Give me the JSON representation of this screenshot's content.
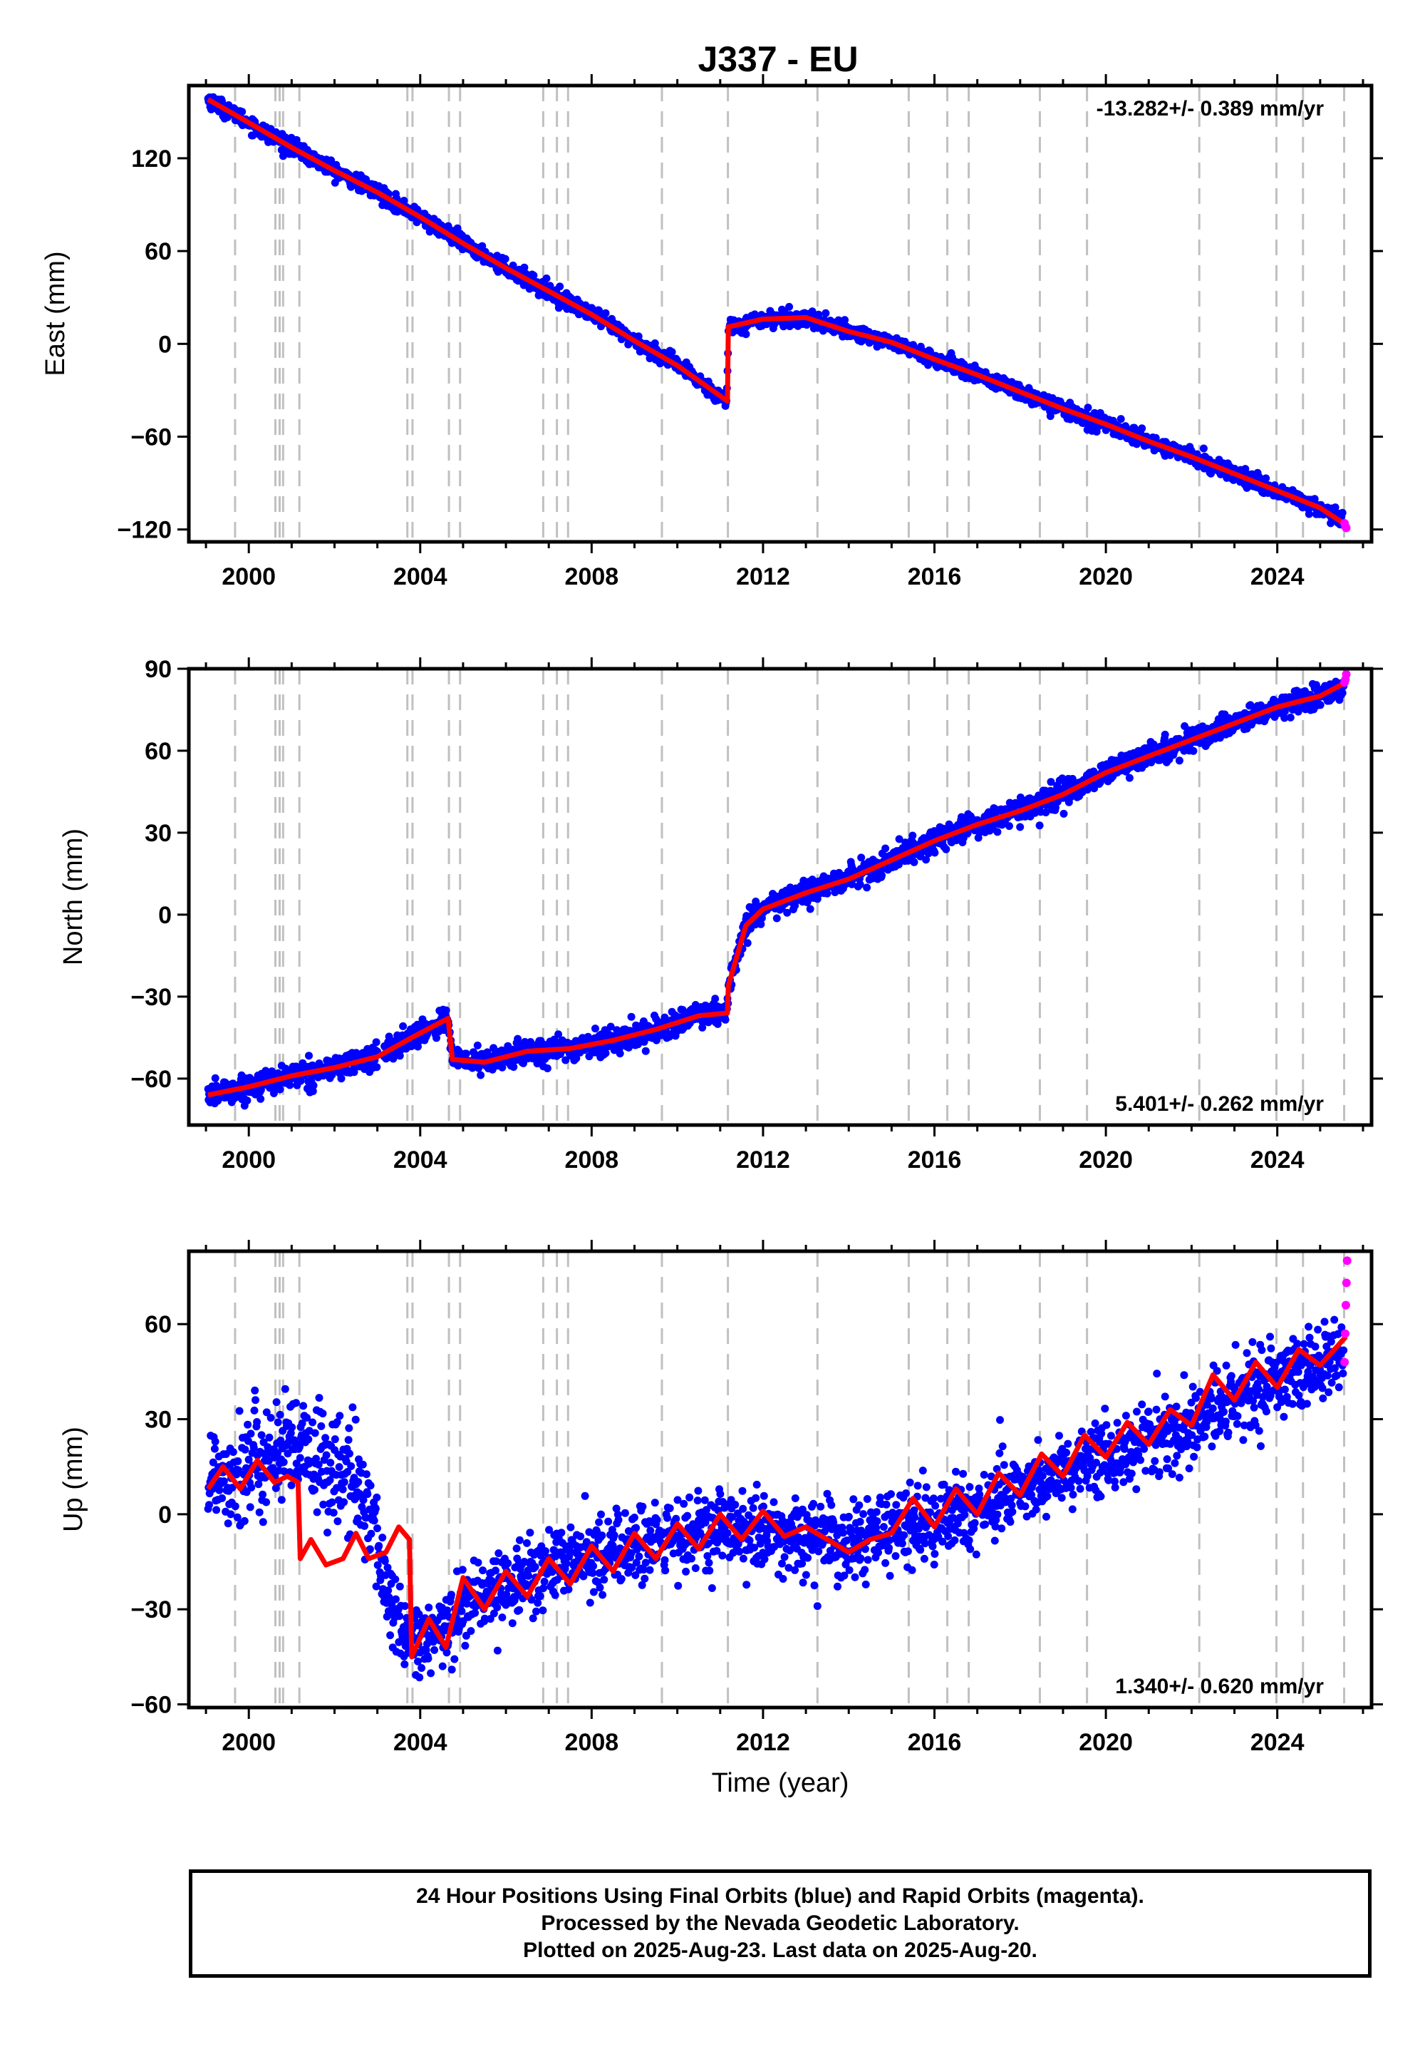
{
  "title": "J337 - EU",
  "x_axis_label": "Time (year)",
  "x_ticks": [
    2000,
    2004,
    2008,
    2012,
    2016,
    2020,
    2024
  ],
  "colors": {
    "final": "#0000ff",
    "rapid": "#ff00ff",
    "model": "#ff0000",
    "events": "#c0c0c0"
  },
  "event_years": [
    1999.68,
    2000.62,
    2000.72,
    2000.8,
    2001.18,
    2003.7,
    2003.82,
    2004.67,
    2004.93,
    2006.87,
    2007.19,
    2007.45,
    2009.64,
    2011.18,
    2013.27,
    2015.4,
    2016.3,
    2016.8,
    2018.46,
    2019.56,
    2022.18,
    2023.98,
    2024.6,
    2025.56
  ],
  "footer": {
    "line1": "24 Hour Positions Using Final Orbits (blue) and Rapid Orbits (magenta).",
    "line2": "Processed by the Nevada Geodetic Laboratory.",
    "line3": "Plotted on 2025-Aug-23. Last data on 2025-Aug-20."
  },
  "chart_data": [
    {
      "type": "scatter",
      "panel": "east",
      "ylabel": "East (mm)",
      "rate_text": "-13.282+/- 0.389 mm/yr",
      "xlim": [
        1998.6,
        2026.2
      ],
      "ylim": [
        -128,
        167
      ],
      "y_ticks": [
        -120,
        -60,
        0,
        60,
        120
      ],
      "noise_mm": 2.5,
      "series": [
        {
          "name": "Final Orbits (blue)",
          "style": "dots",
          "x": [
            1999.05,
            2000.0,
            2001.0,
            2002.0,
            2003.0,
            2004.0,
            2005.0,
            2006.0,
            2007.0,
            2008.0,
            2009.0,
            2010.0,
            2011.15,
            2011.2,
            2012.0,
            2013.0,
            2014.0,
            2015.0,
            2016.0,
            2017.0,
            2018.0,
            2019.0,
            2020.0,
            2021.0,
            2022.0,
            2023.0,
            2024.0,
            2025.0,
            2025.55
          ],
          "y": [
            158,
            143,
            127,
            112,
            98,
            82,
            65,
            49,
            34,
            19,
            2,
            -14,
            -37,
            11,
            16,
            17,
            8,
            1,
            -10,
            -20,
            -31,
            -42,
            -52,
            -63,
            -73,
            -84,
            -95,
            -106,
            -115
          ]
        },
        {
          "name": "Rapid Orbits (magenta)",
          "style": "dots",
          "x": [
            2025.57,
            2025.59,
            2025.61
          ],
          "y": [
            -116,
            -118,
            -119
          ]
        },
        {
          "name": "Model (red)",
          "style": "line",
          "x": [
            1999.05,
            2000.0,
            2001.0,
            2002.0,
            2003.0,
            2004.0,
            2005.0,
            2006.0,
            2007.0,
            2008.0,
            2009.0,
            2010.0,
            2011.17,
            2011.19,
            2012.0,
            2013.0,
            2014.0,
            2015.0,
            2016.0,
            2017.0,
            2018.0,
            2019.0,
            2020.0,
            2021.0,
            2022.0,
            2023.0,
            2024.0,
            2025.0,
            2025.6
          ],
          "y": [
            158,
            143,
            127,
            112,
            98,
            82,
            65,
            49,
            34,
            19,
            2,
            -14,
            -37,
            11,
            16,
            17,
            8,
            1,
            -10,
            -20,
            -31,
            -42,
            -52,
            -63,
            -73,
            -84,
            -95,
            -106,
            -117
          ]
        }
      ]
    },
    {
      "type": "scatter",
      "panel": "north",
      "ylabel": "North (mm)",
      "rate_text": "5.401+/- 0.262 mm/yr",
      "xlim": [
        1998.6,
        2026.2
      ],
      "ylim": [
        -77,
        90
      ],
      "y_ticks": [
        -60,
        -30,
        0,
        30,
        60,
        90
      ],
      "noise_mm": 2.2,
      "series": [
        {
          "name": "Final Orbits (blue)",
          "style": "dots",
          "x": [
            1999.05,
            2000.0,
            2001.0,
            2002.0,
            2003.0,
            2003.8,
            2004.65,
            2004.75,
            2005.5,
            2006.5,
            2007.5,
            2008.5,
            2009.5,
            2010.5,
            2011.15,
            2011.2,
            2011.6,
            2012.0,
            2013.0,
            2014.0,
            2015.0,
            2016.0,
            2017.0,
            2018.0,
            2019.0,
            2020.0,
            2021.0,
            2022.0,
            2023.0,
            2024.0,
            2025.0,
            2025.55
          ],
          "y": [
            -66,
            -63,
            -59,
            -56,
            -52,
            -45,
            -38,
            -53,
            -54,
            -50,
            -49,
            -46,
            -42,
            -37,
            -36,
            -26,
            -4,
            2,
            8,
            13,
            20,
            27,
            33,
            38,
            44,
            52,
            58,
            64,
            70,
            76,
            80,
            83
          ]
        },
        {
          "name": "Rapid Orbits (magenta)",
          "style": "dots",
          "x": [
            2025.57,
            2025.59,
            2025.61
          ],
          "y": [
            85,
            86,
            88
          ]
        },
        {
          "name": "Model (red)",
          "style": "line",
          "x": [
            1999.05,
            2000.0,
            2001.0,
            2002.0,
            2003.0,
            2003.8,
            2004.65,
            2004.75,
            2005.5,
            2006.5,
            2007.5,
            2008.5,
            2009.5,
            2010.5,
            2011.17,
            2011.19,
            2011.6,
            2012.0,
            2013.0,
            2014.0,
            2015.0,
            2016.0,
            2017.0,
            2018.0,
            2019.0,
            2020.0,
            2021.0,
            2022.0,
            2023.0,
            2024.0,
            2025.0,
            2025.6
          ],
          "y": [
            -66,
            -63,
            -59,
            -56,
            -52,
            -45,
            -38,
            -53,
            -54,
            -50,
            -49,
            -46,
            -42,
            -37,
            -36,
            -26,
            -4,
            2,
            8,
            13,
            20,
            27,
            33,
            38,
            44,
            52,
            58,
            64,
            70,
            76,
            80,
            85
          ]
        }
      ]
    },
    {
      "type": "scatter",
      "panel": "up",
      "ylabel": "Up (mm)",
      "xlabel": "Time (year)",
      "rate_text": "1.340+/- 0.620 mm/yr",
      "xlim": [
        1998.6,
        2026.2
      ],
      "ylim": [
        -61,
        83
      ],
      "y_ticks": [
        -60,
        -30,
        0,
        30,
        60
      ],
      "noise_mm": 6,
      "series": [
        {
          "name": "Final Orbits (blue)",
          "style": "dots",
          "x": [
            1999.05,
            2000.0,
            2000.7,
            2001.5,
            2002.3,
            2002.8,
            2003.3,
            2003.7,
            2003.9,
            2004.5,
            2005.0,
            2006.0,
            2007.0,
            2008.0,
            2009.0,
            2010.0,
            2011.0,
            2012.0,
            2013.0,
            2014.0,
            2015.0,
            2016.0,
            2017.0,
            2018.0,
            2019.0,
            2020.0,
            2021.0,
            2022.0,
            2023.0,
            2024.0,
            2025.0,
            2025.55
          ],
          "y": [
            12,
            15,
            20,
            18,
            12,
            4,
            -30,
            -38,
            -42,
            -38,
            -28,
            -22,
            -17,
            -13,
            -10,
            -7,
            -6,
            -6,
            -8,
            -9,
            -6,
            -2,
            2,
            8,
            13,
            19,
            24,
            28,
            36,
            43,
            47,
            50
          ]
        },
        {
          "name": "Rapid Orbits (magenta)",
          "style": "dots",
          "x": [
            2025.57,
            2025.585,
            2025.6,
            2025.615,
            2025.63
          ],
          "y": [
            48,
            57,
            66,
            73,
            80
          ]
        },
        {
          "name": "Model (red)",
          "style": "line",
          "x": [
            1999.05,
            1999.4,
            1999.8,
            2000.2,
            2000.6,
            2000.9,
            2001.15,
            2001.2,
            2001.45,
            2001.8,
            2002.2,
            2002.5,
            2002.8,
            2003.2,
            2003.5,
            2003.75,
            2003.8,
            2004.2,
            2004.6,
            2005.0,
            2005.5,
            2006.0,
            2006.5,
            2007.0,
            2007.5,
            2008.0,
            2008.5,
            2009.0,
            2009.5,
            2010.0,
            2010.5,
            2011.0,
            2011.5,
            2012.0,
            2012.5,
            2013.0,
            2013.5,
            2014.0,
            2014.5,
            2015.0,
            2015.5,
            2016.0,
            2016.5,
            2017.0,
            2017.5,
            2018.0,
            2018.5,
            2019.0,
            2019.5,
            2020.0,
            2020.5,
            2021.0,
            2021.5,
            2022.0,
            2022.5,
            2023.0,
            2023.5,
            2024.0,
            2024.5,
            2025.0,
            2025.6
          ],
          "y": [
            8,
            15,
            8,
            17,
            10,
            12,
            10,
            -14,
            -8,
            -16,
            -14,
            -6,
            -14,
            -12,
            -4,
            -8,
            -45,
            -33,
            -42,
            -20,
            -30,
            -18,
            -26,
            -14,
            -22,
            -10,
            -18,
            -6,
            -14,
            -3,
            -11,
            0,
            -8,
            1,
            -7,
            -4,
            -8,
            -12,
            -8,
            -6,
            5,
            -4,
            8,
            0,
            13,
            6,
            19,
            12,
            25,
            18,
            29,
            22,
            33,
            28,
            44,
            36,
            48,
            40,
            52,
            47,
            56
          ]
        }
      ]
    }
  ]
}
